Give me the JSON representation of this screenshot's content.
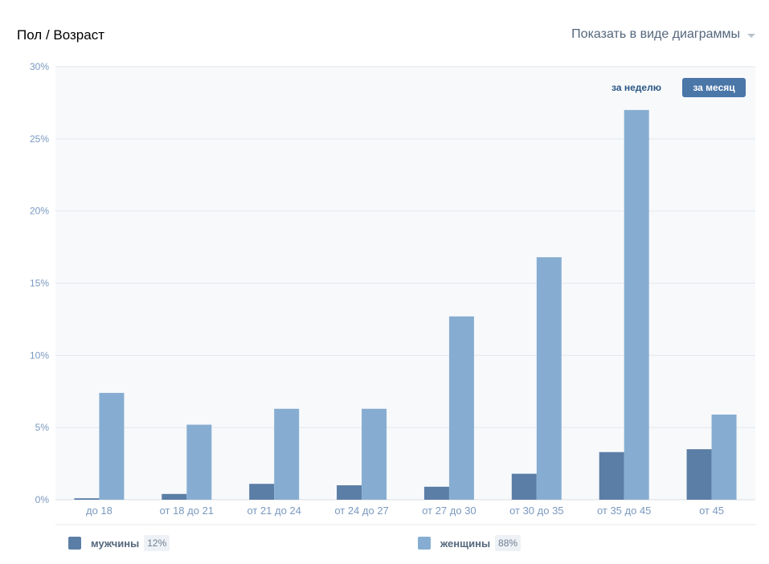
{
  "header": {
    "title": "Пол / Возраст",
    "view_switch": "Показать в виде диаграммы"
  },
  "period_buttons": {
    "week": "за неделю",
    "month": "за месяц",
    "active": "month"
  },
  "colors": {
    "men": "#5b7ea6",
    "women": "#86add1",
    "axis_text": "#7a99c0",
    "grid": "#e3e8ee",
    "plot_bg": "#f8f9fb",
    "button_active": "#4a76a8"
  },
  "legend": [
    {
      "label": "мужчины",
      "pct": "12%"
    },
    {
      "label": "женщины",
      "pct": "88%"
    }
  ],
  "chart_data": {
    "type": "bar",
    "categories": [
      "до 18",
      "от 18 до 21",
      "от 21 до 24",
      "от 24 до 27",
      "от 27 до 30",
      "от 30 до 35",
      "от 35 до 45",
      "от 45"
    ],
    "series": [
      {
        "name": "мужчины",
        "values": [
          0.1,
          0.4,
          1.1,
          1.0,
          0.9,
          1.8,
          3.3,
          3.5
        ]
      },
      {
        "name": "женщины",
        "values": [
          7.4,
          5.2,
          6.3,
          6.3,
          12.7,
          16.8,
          27.0,
          5.9
        ]
      }
    ],
    "yticks": [
      "0%",
      "5%",
      "10%",
      "15%",
      "20%",
      "25%",
      "30%"
    ],
    "ylim": [
      0,
      30
    ],
    "grid": true,
    "legend_position": "bottom"
  }
}
